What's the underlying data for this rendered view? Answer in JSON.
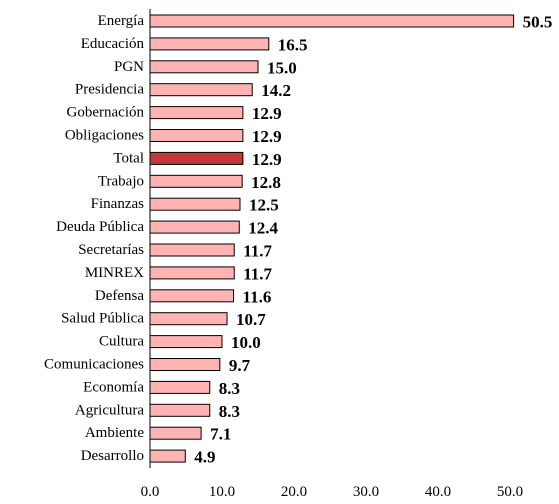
{
  "chart_data": {
    "type": "bar",
    "orientation": "horizontal",
    "title": "",
    "xlabel": "",
    "ylabel": "",
    "xlim": [
      0,
      50
    ],
    "x_ticks": [
      "0.0",
      "10.0",
      "20.0",
      "30.0",
      "40.0",
      "50.0"
    ],
    "grid": false,
    "legend": "none",
    "colors": {
      "default": "#ffb3b3",
      "highlight": "#c0393b",
      "outline": "#000000"
    },
    "categories": [
      "Energía",
      "Educación",
      "PGN",
      "Presidencia",
      "Gobernación",
      "Obligaciones",
      "Total",
      "Trabajo",
      "Finanzas",
      "Deuda Pública",
      "Secretarías",
      "MINREX",
      "Defensa",
      "Salud Pública",
      "Cultura",
      "Comunicaciones",
      "Economía",
      "Agricultura",
      "Ambiente",
      "Desarrollo"
    ],
    "values": [
      50.5,
      16.5,
      15.0,
      14.2,
      12.9,
      12.9,
      12.9,
      12.8,
      12.5,
      12.4,
      11.7,
      11.7,
      11.6,
      10.7,
      10.0,
      9.7,
      8.3,
      8.3,
      7.1,
      4.9
    ],
    "value_labels": [
      "50.5",
      "16.5",
      "15.0",
      "14.2",
      "12.9",
      "12.9",
      "12.9",
      "12.8",
      "12.5",
      "12.4",
      "11.7",
      "11.7",
      "11.6",
      "10.7",
      "10.0",
      "9.7",
      "8.3",
      "8.3",
      "7.1",
      "4.9"
    ],
    "highlight_category": "Total"
  }
}
